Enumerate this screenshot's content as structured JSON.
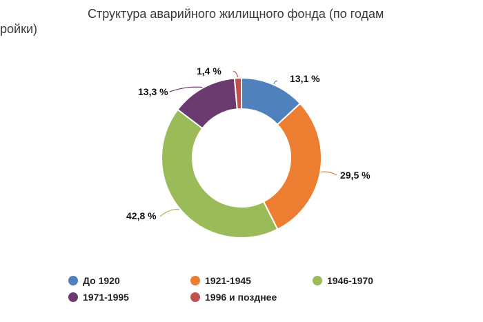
{
  "chart_data": {
    "type": "pie",
    "title_line1": "Структура аварийного жилищного фонда (по годам",
    "title_line2": "ройки)",
    "slices": [
      {
        "category": "До 1920",
        "value": 13.1,
        "label": "13,1 %",
        "color": "#4f81bd"
      },
      {
        "category": "1921-1945",
        "value": 29.5,
        "label": "29,5 %",
        "color": "#ed7d31"
      },
      {
        "category": "1946-1970",
        "value": 42.8,
        "label": "42,8 %",
        "color": "#9bbb59"
      },
      {
        "category": "1971-1995",
        "value": 13.3,
        "label": "13,3 %",
        "color": "#6b3a6e"
      },
      {
        "category": "1996 и позднее",
        "value": 1.4,
        "label": "1,4 %",
        "color": "#c0504d"
      }
    ],
    "legend_position": "bottom",
    "donut": true
  }
}
